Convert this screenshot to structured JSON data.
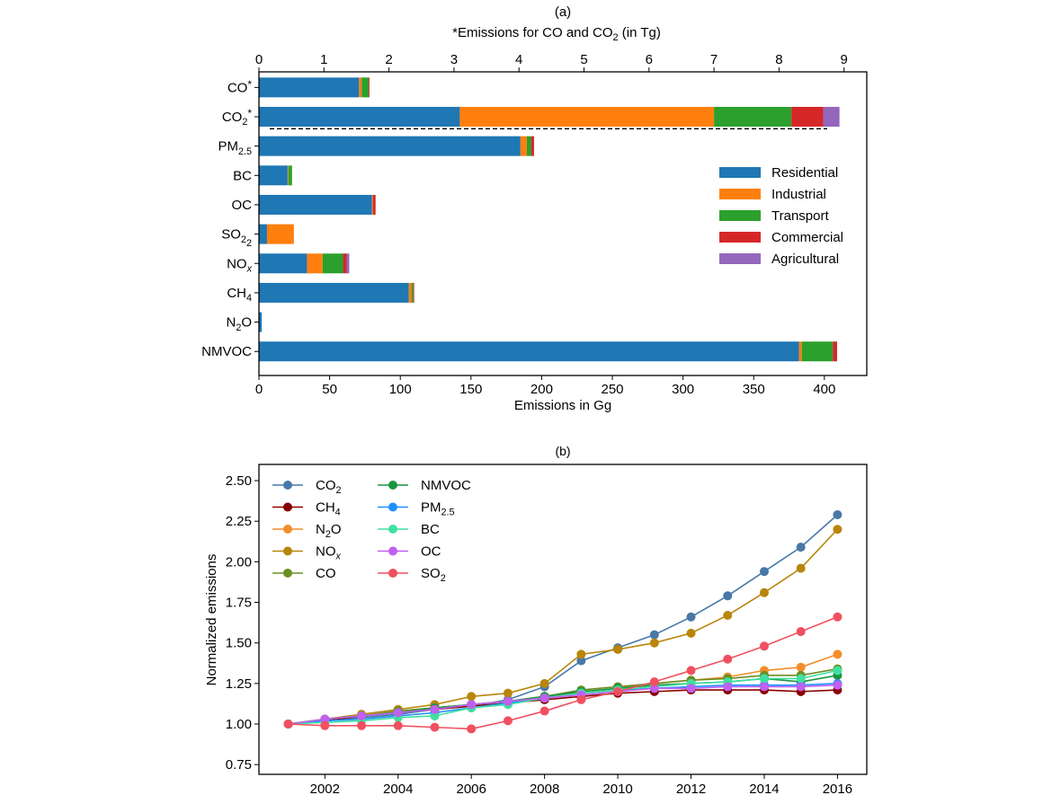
{
  "chart_data": [
    {
      "type": "bar",
      "orientation": "horizontal",
      "stacked": true,
      "panel_label": "(a)",
      "title": "(a)",
      "xlabel": "Emissions in Gg",
      "x_top_label": "*Emissions for CO and CO₂ (in Tg)",
      "xlim": [
        0,
        430
      ],
      "x_ticks": [
        0,
        50,
        100,
        150,
        200,
        250,
        300,
        350,
        400
      ],
      "x_top_lim": [
        0,
        9.35
      ],
      "x_top_ticks": [
        0,
        1,
        2,
        3,
        4,
        5,
        6,
        7,
        8,
        9
      ],
      "categories": [
        {
          "key": "CO",
          "label": "CO",
          "sub": "",
          "sup": "*",
          "units": "Tg"
        },
        {
          "key": "CO2",
          "label": "CO",
          "sub": "2",
          "sup": "*",
          "units": "Tg"
        },
        {
          "key": "PM25",
          "label": "PM",
          "sub": "2.5",
          "sup": "",
          "units": "Gg"
        },
        {
          "key": "BC",
          "label": "BC",
          "sub": "",
          "sup": "",
          "units": "Gg"
        },
        {
          "key": "OC",
          "label": "OC",
          "sub": "",
          "sup": "",
          "units": "Gg"
        },
        {
          "key": "SO2",
          "label": "SO",
          "sub": "2",
          "sup": "",
          "extra_sub": "2",
          "units": "Gg"
        },
        {
          "key": "NOx",
          "label": "NO",
          "sub": "x",
          "sup": "",
          "units": "Gg"
        },
        {
          "key": "CH4",
          "label": "CH",
          "sub": "4",
          "sup": "",
          "units": "Gg"
        },
        {
          "key": "N2O",
          "label": "N",
          "sub": "2",
          "post": "O",
          "sup": "",
          "units": "Gg"
        },
        {
          "key": "NMVOC",
          "label": "NMVOC",
          "sub": "",
          "sup": "",
          "units": "Gg"
        }
      ],
      "series": [
        {
          "name": "Residential",
          "color": "#1f77b4",
          "values": [
            1.54,
            3.09,
            185.0,
            20.3,
            80.0,
            5.7,
            34.0,
            106.0,
            2.0,
            382.0
          ]
        },
        {
          "name": "Industrial",
          "color": "#ff7f0e",
          "values": [
            0.04,
            3.91,
            4.5,
            0.6,
            0.6,
            19.0,
            11.0,
            1.9,
            0.0,
            2.0
          ]
        },
        {
          "name": "Transport",
          "color": "#2ca02c",
          "values": [
            0.11,
            1.19,
            3.2,
            2.5,
            0.0,
            0.0,
            14.5,
            1.3,
            0.0,
            22.0
          ]
        },
        {
          "name": "Commercial",
          "color": "#d62728",
          "values": [
            0.01,
            0.49,
            1.9,
            0.0,
            1.9,
            0.0,
            2.5,
            0.6,
            0.0,
            3.0
          ]
        },
        {
          "name": "Agricultural",
          "color": "#9467bd",
          "values": [
            0.0,
            0.25,
            0.0,
            0.0,
            0.0,
            0.0,
            1.9,
            0.0,
            0.0,
            0.0
          ]
        }
      ],
      "separator": "dashed line between CO₂* (Tg) and PM₂.₅ (Gg) groups",
      "legend": {
        "placement": "right",
        "entries": [
          "Residential",
          "Industrial",
          "Transport",
          "Commercial",
          "Agricultural"
        ]
      },
      "grid": false
    },
    {
      "type": "line",
      "panel_label": "(b)",
      "title": "(b)",
      "xlabel": "",
      "ylabel": "Normalized emissions",
      "xlim": [
        2000.2,
        2016.8
      ],
      "ylim": [
        0.69,
        2.6
      ],
      "x_ticks": [
        2002,
        2004,
        2006,
        2008,
        2010,
        2012,
        2014,
        2016
      ],
      "y_ticks": [
        0.75,
        1.0,
        1.25,
        1.5,
        1.75,
        2.0,
        2.25,
        2.5
      ],
      "y_tick_labels": [
        "0.75",
        "1.00",
        "1.25",
        "1.50",
        "1.75",
        "2.00",
        "2.25",
        "2.50"
      ],
      "x": [
        2001,
        2002,
        2003,
        2004,
        2005,
        2006,
        2007,
        2008,
        2009,
        2010,
        2011,
        2012,
        2013,
        2014,
        2015,
        2016
      ],
      "series": [
        {
          "name": "CO2",
          "label": "CO",
          "sub": "2",
          "color": "#4878a8",
          "values": [
            1.0,
            1.02,
            1.04,
            1.06,
            1.09,
            1.11,
            1.15,
            1.23,
            1.39,
            1.47,
            1.55,
            1.66,
            1.79,
            1.94,
            2.09,
            2.29
          ]
        },
        {
          "name": "CH4",
          "label": "CH",
          "sub": "4",
          "color": "#8b0000",
          "values": [
            1.0,
            1.02,
            1.05,
            1.07,
            1.09,
            1.11,
            1.13,
            1.15,
            1.17,
            1.19,
            1.2,
            1.21,
            1.21,
            1.21,
            1.2,
            1.21
          ]
        },
        {
          "name": "N2O",
          "label": "N",
          "sub": "2",
          "post": "O",
          "color": "#f28e2b",
          "values": [
            1.0,
            1.03,
            1.05,
            1.08,
            1.1,
            1.12,
            1.14,
            1.17,
            1.2,
            1.22,
            1.25,
            1.27,
            1.29,
            1.33,
            1.35,
            1.43
          ]
        },
        {
          "name": "NOx",
          "label": "NO",
          "sub": "x",
          "color": "#b8860b",
          "values": [
            1.0,
            1.03,
            1.06,
            1.09,
            1.12,
            1.17,
            1.19,
            1.25,
            1.43,
            1.46,
            1.5,
            1.56,
            1.67,
            1.81,
            1.96,
            2.2
          ]
        },
        {
          "name": "CO",
          "label": "CO",
          "sub": "",
          "color": "#6b8e23",
          "values": [
            1.0,
            1.03,
            1.05,
            1.08,
            1.1,
            1.12,
            1.14,
            1.17,
            1.21,
            1.23,
            1.25,
            1.27,
            1.28,
            1.3,
            1.3,
            1.34
          ]
        },
        {
          "name": "NMVOC",
          "label": "NMVOC",
          "sub": "",
          "color": "#1a9641",
          "values": [
            1.0,
            1.03,
            1.05,
            1.07,
            1.1,
            1.12,
            1.14,
            1.17,
            1.2,
            1.22,
            1.24,
            1.25,
            1.26,
            1.28,
            1.26,
            1.3
          ]
        },
        {
          "name": "PM2.5",
          "label": "PM",
          "sub": "2.5",
          "color": "#1e90ff",
          "values": [
            1.0,
            1.02,
            1.03,
            1.05,
            1.07,
            1.1,
            1.13,
            1.16,
            1.19,
            1.21,
            1.22,
            1.23,
            1.24,
            1.24,
            1.24,
            1.25
          ]
        },
        {
          "name": "BC",
          "label": "BC",
          "sub": "",
          "color": "#40e0a0",
          "values": [
            1.0,
            1.01,
            1.02,
            1.04,
            1.05,
            1.1,
            1.12,
            1.16,
            1.19,
            1.21,
            1.23,
            1.25,
            1.26,
            1.28,
            1.28,
            1.33
          ]
        },
        {
          "name": "OC",
          "label": "OC",
          "sub": "",
          "color": "#c060f0",
          "values": [
            1.0,
            1.03,
            1.05,
            1.07,
            1.09,
            1.12,
            1.14,
            1.16,
            1.18,
            1.2,
            1.22,
            1.22,
            1.23,
            1.23,
            1.23,
            1.24
          ]
        },
        {
          "name": "SO2",
          "label": "SO",
          "sub": "2",
          "color": "#f05060",
          "values": [
            1.0,
            0.99,
            0.99,
            0.99,
            0.98,
            0.97,
            1.02,
            1.08,
            1.15,
            1.2,
            1.26,
            1.33,
            1.4,
            1.48,
            1.57,
            1.66
          ]
        }
      ],
      "legend": {
        "placement": "top-left",
        "columns": 2
      },
      "grid": false
    }
  ]
}
